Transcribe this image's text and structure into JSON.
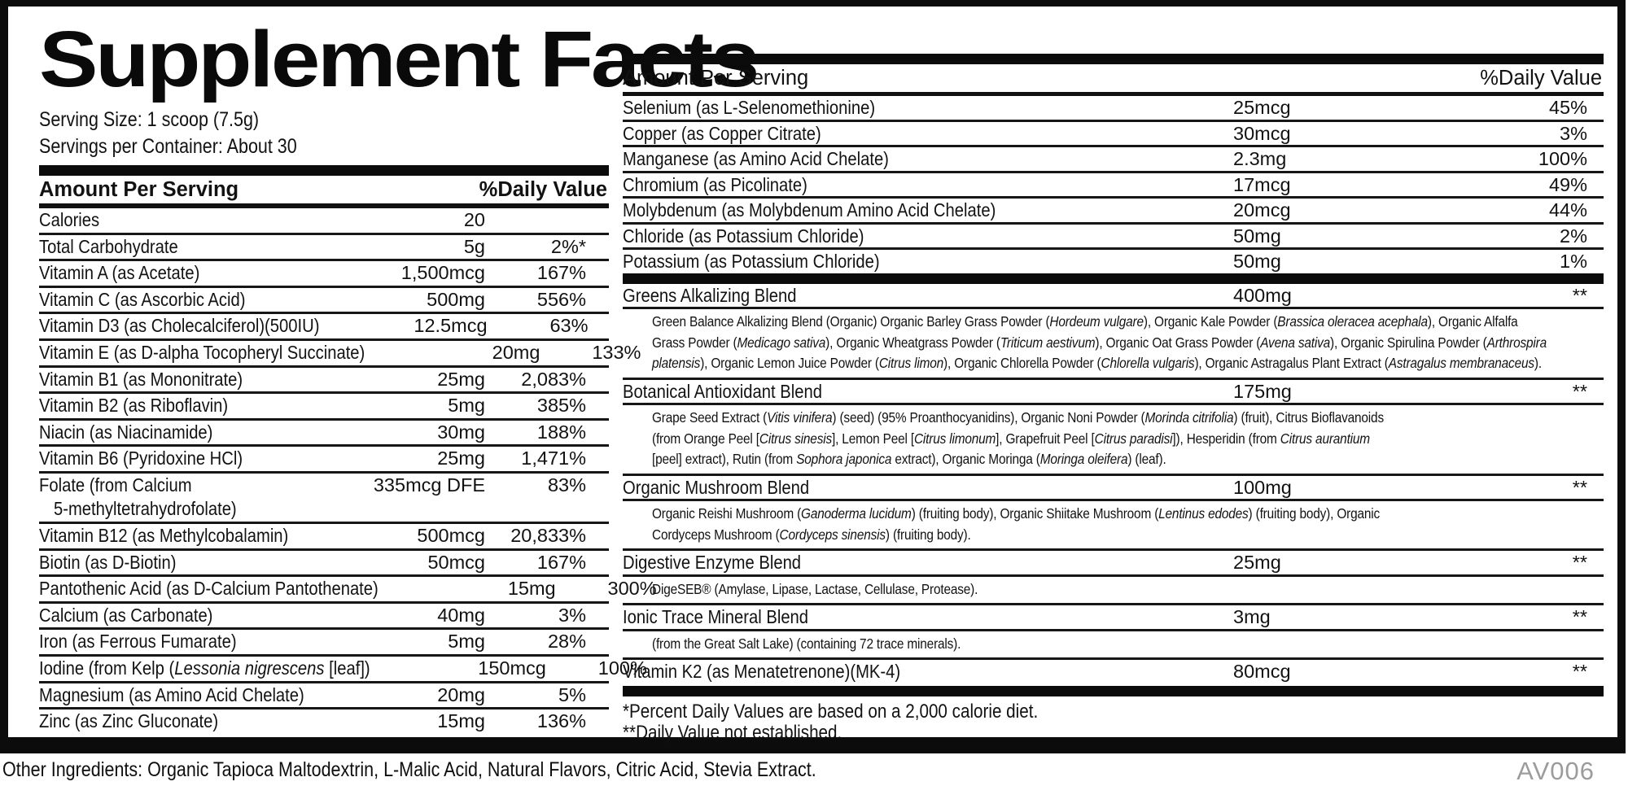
{
  "title": "Supplement Facts",
  "serving": {
    "size": "Serving Size: 1 scoop (7.5g)",
    "per_container": "Servings per Container: About 30"
  },
  "table_header": {
    "amount": "Amount Per Serving",
    "dv": "%Daily Value"
  },
  "left_rows": [
    {
      "name": "Calories",
      "amount": "20",
      "dv": ""
    },
    {
      "name": "Total Carbohydrate",
      "amount": "5g",
      "dv": "2%*"
    },
    {
      "name": "Vitamin A (as Acetate)",
      "amount": "1,500mcg",
      "dv": "167%"
    },
    {
      "name": "Vitamin C (as Ascorbic Acid)",
      "amount": "500mg",
      "dv": "556%"
    },
    {
      "name": "Vitamin D3 (as Cholecalciferol)(500IU)",
      "amount": "12.5mcg",
      "dv": "63%"
    },
    {
      "name": "Vitamin E (as D-alpha Tocopheryl Succinate)",
      "amount": "20mg",
      "dv": "133%"
    },
    {
      "name": "Vitamin B1 (as Mononitrate)",
      "amount": "25mg",
      "dv": "2,083%"
    },
    {
      "name": "Vitamin B2 (as Riboflavin)",
      "amount": "5mg",
      "dv": "385%"
    },
    {
      "name": "Niacin (as Niacinamide)",
      "amount": "30mg",
      "dv": "188%"
    },
    {
      "name": "Vitamin B6 (Pyridoxine HCl)",
      "amount": "25mg",
      "dv": "1,471%"
    },
    {
      "name": "Folate (from Calcium",
      "name2": "5-methyltetrahydrofolate)",
      "amount": "335mcg DFE",
      "dv": "83%"
    },
    {
      "name": "Vitamin B12 (as Methylcobalamin)",
      "amount": "500mcg",
      "dv": "20,833%"
    },
    {
      "name": "Biotin (as D-Biotin)",
      "amount": "50mcg",
      "dv": "167%"
    },
    {
      "name": "Pantothenic Acid (as D-Calcium Pantothenate)",
      "amount": "15mg",
      "dv": "300%"
    },
    {
      "name": "Calcium (as Carbonate)",
      "amount": "40mg",
      "dv": "3%"
    },
    {
      "name": "Iron (as Ferrous Fumarate)",
      "amount": "5mg",
      "dv": "28%"
    },
    {
      "name": [
        {
          "t": "Iodine (from Kelp (",
          "i": false
        },
        {
          "t": "Lessonia nigrescens",
          "i": true
        },
        {
          "t": " [leaf])",
          "i": false
        }
      ],
      "amount": "150mcg",
      "dv": "100%"
    },
    {
      "name": "Magnesium (as Amino Acid Chelate)",
      "amount": "20mg",
      "dv": "5%"
    },
    {
      "name": "Zinc (as Zinc Gluconate)",
      "amount": "15mg",
      "dv": "136%"
    }
  ],
  "right_rows": [
    {
      "name": "Selenium (as L-Selenomethionine)",
      "amount": "25mcg",
      "dv": "45%"
    },
    {
      "name": "Copper (as Copper Citrate)",
      "amount": "30mcg",
      "dv": "3%"
    },
    {
      "name": "Manganese (as Amino Acid Chelate)",
      "amount": "2.3mg",
      "dv": "100%"
    },
    {
      "name": "Chromium (as Picolinate)",
      "amount": "17mcg",
      "dv": "49%"
    },
    {
      "name": "Molybdenum (as Molybdenum Amino Acid Chelate)",
      "amount": "20mcg",
      "dv": "44%"
    },
    {
      "name": "Chloride (as Potassium Chloride)",
      "amount": "50mg",
      "dv": "2%"
    },
    {
      "name": "Potassium (as Potassium Chloride)",
      "amount": "50mg",
      "dv": "1%"
    }
  ],
  "blends": [
    {
      "name": "Greens Alkalizing Blend",
      "amount": "400mg",
      "dv": "**",
      "desc": [
        {
          "t": "Green Balance Alkalizing Blend (Organic) Organic Barley Grass Powder (",
          "i": false
        },
        {
          "t": "Hordeum vulgare",
          "i": true
        },
        {
          "t": "), Organic Kale Powder (",
          "i": false
        },
        {
          "t": "Brassica oleracea acephala",
          "i": true
        },
        {
          "t": "), Organic Alfalfa\nGrass Powder (",
          "i": false
        },
        {
          "t": "Medicago sativa",
          "i": true
        },
        {
          "t": "), Organic Wheatgrass Powder (",
          "i": false
        },
        {
          "t": "Triticum aestivum",
          "i": true
        },
        {
          "t": "), Organic Oat Grass Powder (",
          "i": false
        },
        {
          "t": "Avena sativa",
          "i": true
        },
        {
          "t": "), Organic Spirulina Powder (",
          "i": false
        },
        {
          "t": "Arthrospira\nplatensis",
          "i": true
        },
        {
          "t": "), Organic Lemon Juice Powder (",
          "i": false
        },
        {
          "t": "Citrus limon",
          "i": true
        },
        {
          "t": "), Organic Chlorella Powder (",
          "i": false
        },
        {
          "t": "Chlorella vulgaris",
          "i": true
        },
        {
          "t": "), Organic Astragalus Plant Extract (",
          "i": false
        },
        {
          "t": "Astragalus membranaceus",
          "i": true
        },
        {
          "t": ").",
          "i": false
        }
      ]
    },
    {
      "name": "Botanical Antioxidant Blend",
      "amount": "175mg",
      "dv": "**",
      "desc": [
        {
          "t": "Grape Seed Extract (",
          "i": false
        },
        {
          "t": "Vitis vinifera",
          "i": true
        },
        {
          "t": ") (seed) (95% Proanthocyanidins), Organic Noni Powder (",
          "i": false
        },
        {
          "t": "Morinda citrifolia",
          "i": true
        },
        {
          "t": ") (fruit), Citrus Bioflavanoids\n(from Orange Peel [",
          "i": false
        },
        {
          "t": "Citrus sinesis",
          "i": true
        },
        {
          "t": "], Lemon Peel [",
          "i": false
        },
        {
          "t": "Citrus limonum",
          "i": true
        },
        {
          "t": "], Grapefruit Peel [",
          "i": false
        },
        {
          "t": "Citrus paradisi",
          "i": true
        },
        {
          "t": "]), Hesperidin (from ",
          "i": false
        },
        {
          "t": "Citrus aurantium",
          "i": true
        },
        {
          "t": "\n[peel] extract), Rutin (from ",
          "i": false
        },
        {
          "t": "Sophora japonica",
          "i": true
        },
        {
          "t": " extract), Organic Moringa (",
          "i": false
        },
        {
          "t": "Moringa oleifera",
          "i": true
        },
        {
          "t": ") (leaf).",
          "i": false
        }
      ]
    },
    {
      "name": "Organic Mushroom Blend",
      "amount": "100mg",
      "dv": "**",
      "desc": [
        {
          "t": "Organic Reishi Mushroom (",
          "i": false
        },
        {
          "t": "Ganoderma lucidum",
          "i": true
        },
        {
          "t": ") (fruiting body), Organic Shiitake Mushroom (",
          "i": false
        },
        {
          "t": "Lentinus edodes",
          "i": true
        },
        {
          "t": ") (fruiting body), Organic\nCordyceps Mushroom (",
          "i": false
        },
        {
          "t": "Cordyceps sinensis",
          "i": true
        },
        {
          "t": ") (fruiting body).",
          "i": false
        }
      ]
    },
    {
      "name": "Digestive Enzyme Blend",
      "amount": "25mg",
      "dv": "**",
      "desc": [
        {
          "t": "DigeSEB® (Amylase, Lipase, Lactase, Cellulase, Protease).",
          "i": false
        }
      ]
    },
    {
      "name": "Ionic Trace Mineral Blend",
      "amount": "3mg",
      "dv": "**",
      "desc": [
        {
          "t": "(from the Great Salt Lake) (containing 72 trace minerals).",
          "i": false
        }
      ]
    },
    {
      "name": "Vitamin K2 (as Menatetrenone)(MK-4)",
      "amount": "80mcg",
      "dv": "**"
    }
  ],
  "footnotes": [
    "*Percent Daily Values are based on a 2,000 calorie diet.",
    "**Daily Value not established."
  ],
  "other_ingredients": "Other Ingredients: Organic Tapioca Maltodextrin, L-Malic Acid, Natural Flavors, Citric Acid, Stevia Extract.",
  "code": "AV006",
  "colors": {
    "ink": "#0c0c0c",
    "muted": "#9c9c9c"
  }
}
